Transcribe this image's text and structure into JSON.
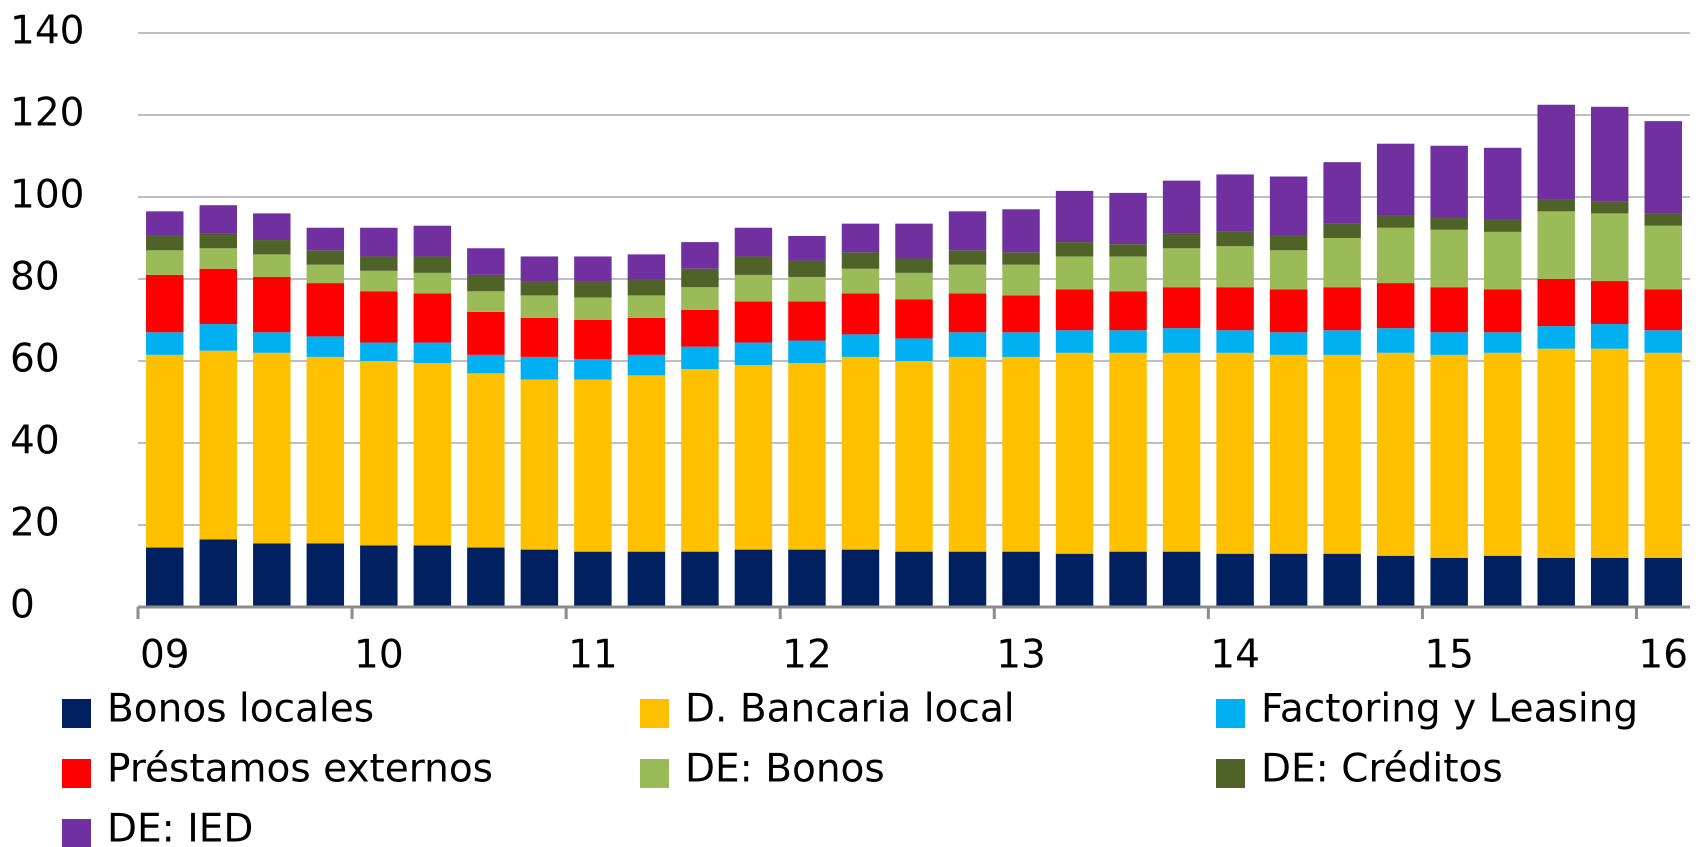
{
  "chart_data": {
    "type": "stacked-bar",
    "categories": [
      "09",
      null,
      null,
      null,
      "10",
      null,
      null,
      null,
      "11",
      null,
      null,
      null,
      "12",
      null,
      null,
      null,
      "13",
      null,
      null,
      null,
      "14",
      null,
      null,
      null,
      "15",
      null,
      null,
      null,
      "16"
    ],
    "ylim": [
      0,
      140
    ],
    "yticks": [
      0,
      20,
      40,
      60,
      80,
      100,
      120,
      140
    ],
    "grid": true,
    "series": [
      {
        "name": "Bonos locales",
        "color": "#002060",
        "values": [
          14.5,
          16.5,
          15.5,
          15.5,
          15,
          15,
          14.5,
          14,
          13.5,
          13.5,
          13.5,
          14,
          14,
          14,
          13.5,
          13.5,
          13.5,
          13,
          13.5,
          13.5,
          13,
          13,
          13,
          12.5,
          12,
          12.5,
          12,
          12,
          12
        ]
      },
      {
        "name": "D. Bancaria local",
        "color": "#ffc000",
        "values": [
          47,
          46,
          46.5,
          45.5,
          45,
          44.5,
          42.5,
          41.5,
          42,
          43,
          44.5,
          45,
          45.5,
          47,
          46.5,
          47.5,
          47.5,
          49,
          48.5,
          48.5,
          49,
          48.5,
          48.5,
          49.5,
          49.5,
          49.5,
          51,
          51,
          50
        ]
      },
      {
        "name": "Factoring y Leasing",
        "color": "#00b0f0",
        "values": [
          5.5,
          6.5,
          5,
          5,
          4.5,
          5,
          4.5,
          5.5,
          5,
          5,
          5.5,
          5.5,
          5.5,
          5.5,
          5.5,
          6,
          6,
          5.5,
          5.5,
          6,
          5.5,
          5.5,
          6,
          6,
          5.5,
          5,
          5.5,
          6,
          5.5
        ]
      },
      {
        "name": "Préstamos externos",
        "color": "#ff0000",
        "values": [
          14,
          13.5,
          13.5,
          13,
          12.5,
          12,
          10.5,
          9.5,
          9.5,
          9,
          9,
          10,
          9.5,
          10,
          9.5,
          9.5,
          9,
          10,
          9.5,
          10,
          10.5,
          10.5,
          10.5,
          11,
          11,
          10.5,
          11.5,
          10.5,
          10
        ]
      },
      {
        "name": "DE: Bonos",
        "color": "#9bbb59",
        "values": [
          6,
          5,
          5.5,
          4.5,
          5,
          5,
          5,
          5.5,
          5.5,
          5.5,
          5.5,
          6.5,
          6,
          6,
          6.5,
          7,
          7.5,
          8,
          8.5,
          9.5,
          10,
          9.5,
          12,
          13.5,
          14,
          14,
          16.5,
          16.5,
          15.5
        ]
      },
      {
        "name": "DE: Créditos",
        "color": "#4f6228",
        "values": [
          3.5,
          3.5,
          3.5,
          3.5,
          3.5,
          4,
          4,
          3.5,
          4,
          4,
          4.5,
          4.5,
          4,
          4,
          3.5,
          3.5,
          3,
          3.5,
          3,
          3.5,
          3.5,
          3.5,
          3.5,
          3,
          3,
          3,
          3,
          3,
          3
        ]
      },
      {
        "name": "DE: IED",
        "color": "#7030a0",
        "values": [
          6,
          7,
          6.5,
          5.5,
          7,
          7.5,
          6.5,
          6,
          6,
          6,
          6.5,
          7,
          6,
          7,
          8.5,
          9.5,
          10.5,
          12.5,
          12.5,
          13,
          14,
          14.5,
          15,
          17.5,
          17.5,
          17.5,
          23,
          23,
          22.5
        ]
      }
    ]
  }
}
